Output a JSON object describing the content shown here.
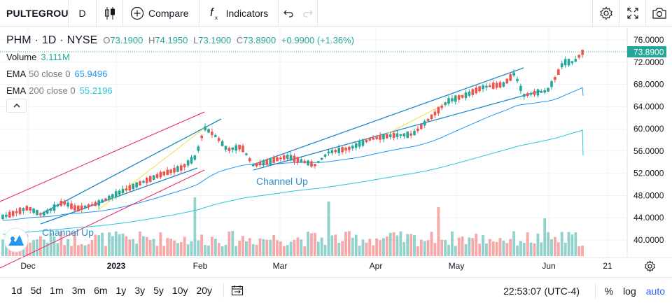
{
  "toolbar": {
    "symbol": "PULTEGROUP",
    "interval": "D",
    "compare_label": "Compare",
    "indicators_label": "Indicators"
  },
  "legend": {
    "symbol": "PHM",
    "interval": "1D",
    "exchange": "NYSE",
    "open_label": "O",
    "open": "73.1900",
    "high_label": "H",
    "high": "74.1950",
    "low_label": "L",
    "low": "73.1900",
    "close_label": "C",
    "close": "73.8900",
    "change": "+0.9900 (+1.36%)",
    "volume_label": "Volume",
    "volume": "3.111M",
    "ema50_label": "EMA",
    "ema50_params": "50 close 0",
    "ema50_value": "65.9496",
    "ema200_label": "EMA",
    "ema200_params": "200 close 0",
    "ema200_value": "55.2196"
  },
  "price_axis": {
    "ticks": [
      "76.0000",
      "72.0000",
      "68.0000",
      "64.0000",
      "60.0000",
      "56.0000",
      "52.0000",
      "48.0000",
      "44.0000",
      "40.0000"
    ],
    "current_price": "73.8900"
  },
  "time_axis": {
    "ticks": [
      "Dec",
      "2023",
      "Feb",
      "Mar",
      "Apr",
      "May",
      "Jun",
      "21"
    ]
  },
  "drawings": {
    "channel1_label": "Channel Up",
    "channel2_label": "Channel Up"
  },
  "bottom": {
    "ranges": [
      "1d",
      "5d",
      "1m",
      "3m",
      "6m",
      "1y",
      "3y",
      "5y",
      "10y",
      "20y"
    ],
    "clock": "22:53:07 (UTC-4)",
    "percent": "%",
    "log": "log",
    "auto": "auto"
  },
  "colors": {
    "up": "#26a69a",
    "down": "#ef5350",
    "ema50": "#2196f3",
    "ema200": "#26c6da",
    "channel": "#1e88c7",
    "pink_channel": "#e91e63",
    "fib": "#f0e040"
  },
  "chart_data": {
    "type": "candlestick",
    "symbol": "PHM",
    "ylim": [
      38,
      78
    ],
    "series": [
      {
        "name": "EMA 50 close 0",
        "last": 65.9496
      },
      {
        "name": "EMA 200 close 0",
        "last": 55.2196
      }
    ],
    "last_close": 73.89
  }
}
